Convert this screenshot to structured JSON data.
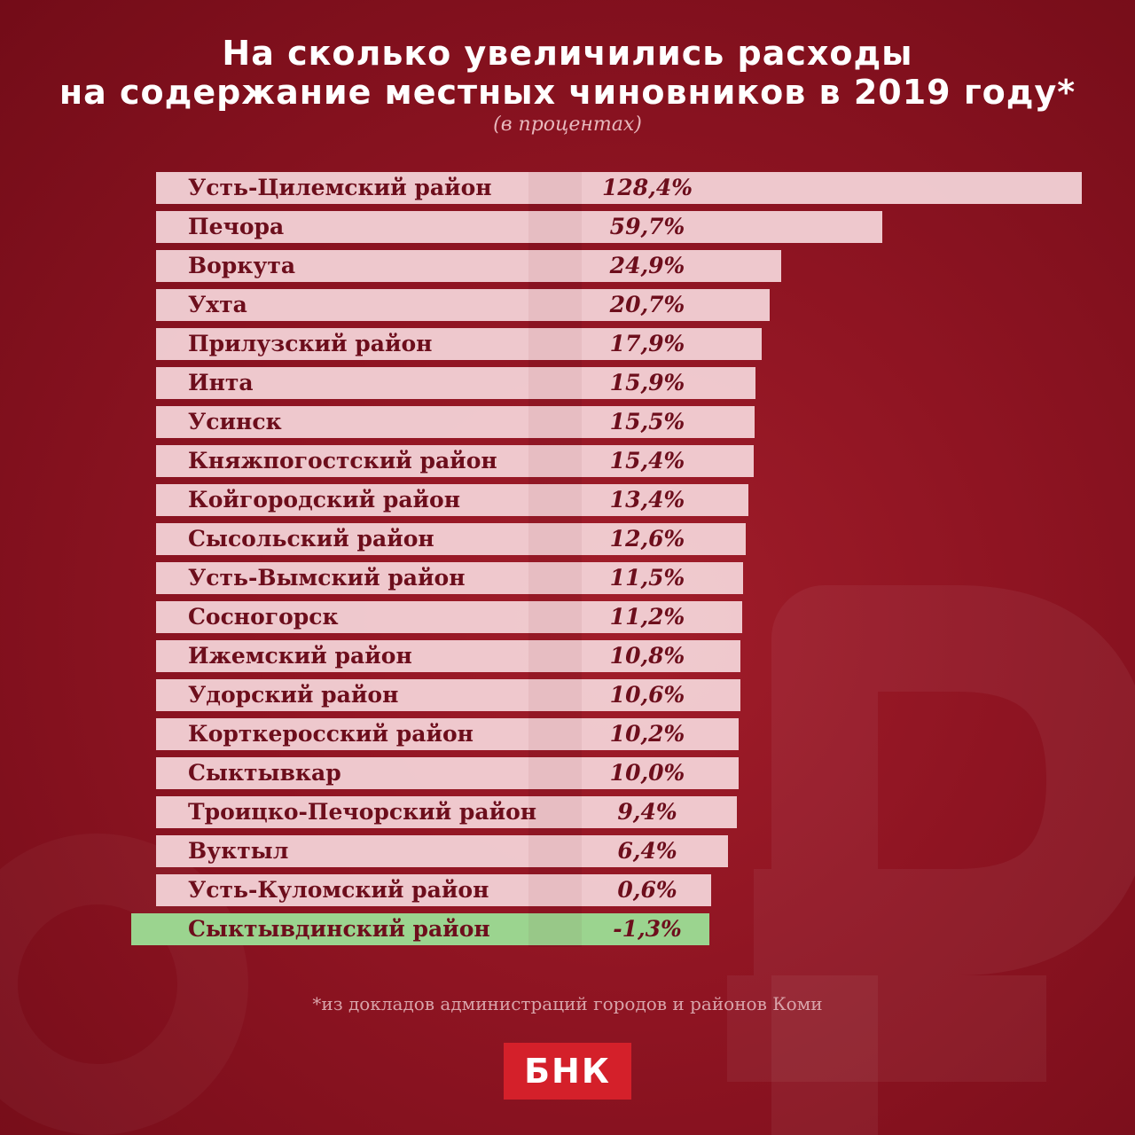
{
  "header": {
    "title_line1": "На сколько увеличились расходы",
    "title_line2": "на содержание местных чиновников в 2019 году*",
    "subtitle": "(в процентах)"
  },
  "chart_data": {
    "type": "bar",
    "orientation": "horizontal",
    "title": "На сколько увеличились расходы на содержание местных чиновников в 2019 году*",
    "subtitle": "(в процентах)",
    "categories": [
      "Усть-Цилемский район",
      "Печора",
      "Воркута",
      "Ухта",
      "Прилузский район",
      "Инта",
      "Усинск",
      "Княжпогостский район",
      "Койгородский район",
      "Сысольский район",
      "Усть-Вымский район",
      "Сосногорск",
      "Ижемский район",
      "Удорский район",
      "Корткеросский район",
      "Сыктывкар",
      "Троицко-Печорский район",
      "Вуктыл",
      "Усть-Куломский район",
      "Сыктывдинский район"
    ],
    "values": [
      128.4,
      59.7,
      24.9,
      20.7,
      17.9,
      15.9,
      15.5,
      15.4,
      13.4,
      12.6,
      11.5,
      11.2,
      10.8,
      10.6,
      10.2,
      10.0,
      9.4,
      6.4,
      0.6,
      -1.3
    ],
    "value_labels": [
      "128,4%",
      "59,7%",
      "24,9%",
      "20,7%",
      "17,9%",
      "15,9%",
      "15,5%",
      "15,4%",
      "13,4%",
      "12,6%",
      "11,5%",
      "11,2%",
      "10,8%",
      "10,6%",
      "10,2%",
      "10,0%",
      "9,4%",
      "6,4%",
      "0,6%",
      "-1,3%"
    ],
    "colors": {
      "positive": "#f5d6da",
      "negative": "#9bd48f",
      "text": "#6d0e1c"
    }
  },
  "footnote": "*из докладов администраций городов и районов Коми",
  "logo": {
    "text": "БНК",
    "color": "#d4202a"
  }
}
